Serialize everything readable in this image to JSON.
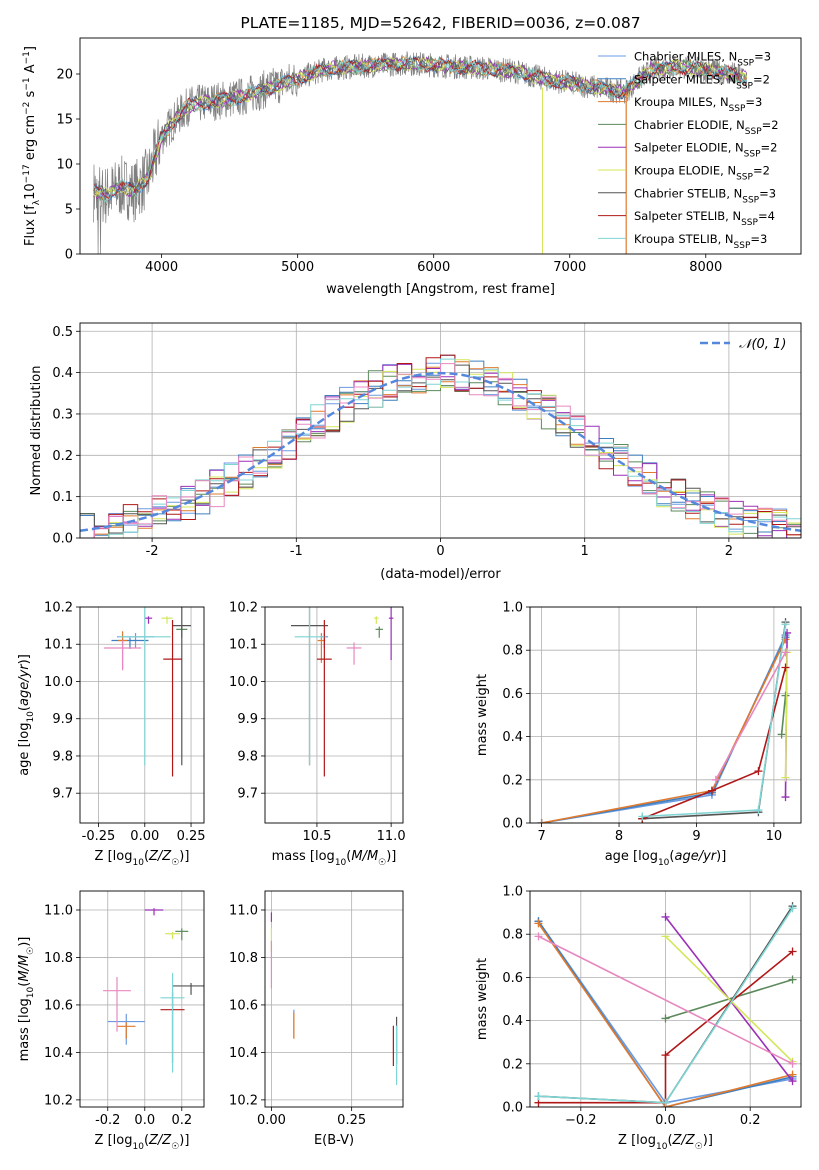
{
  "colors": {
    "Chabrier MILES": "#6a9be0",
    "Salpeter MILES": "#3d7fc0",
    "Kroupa MILES": "#e07a2e",
    "Chabrier ELODIE": "#5c8a5c",
    "Salpeter ELODIE": "#9b30b8",
    "Kroupa ELODIE": "#d4e65a",
    "Chabrier STELIB": "#555555",
    "Salpeter STELIB": "#b01818",
    "Kroupa STELIB": "#7fd4d4",
    "pink": "#e888c0",
    "normal": "#5588dd"
  },
  "chart_data": [
    {
      "id": "spectrum",
      "type": "line",
      "title": "PLATE=1185, MJD=52642, FIBERID=0036, z=0.087",
      "xlabel": "wavelength [Angstrom, rest frame]",
      "ylabel": "Flux [f_λ 10^-17 erg cm^-2 s^-1 A^-1]",
      "xlim": [
        3400,
        8700
      ],
      "ylim": [
        0,
        24
      ],
      "xticks": [
        4000,
        5000,
        6000,
        7000,
        8000
      ],
      "yticks": [
        0,
        5,
        10,
        15,
        20
      ],
      "continuum": {
        "x": [
          3500,
          3600,
          3700,
          3800,
          3900,
          4000,
          4100,
          4200,
          4400,
          4600,
          4800,
          5000,
          5200,
          5400,
          5600,
          5800,
          6000,
          6200,
          6400,
          6600,
          6800,
          7000,
          7200,
          7400,
          7600,
          7800,
          8000,
          8200,
          8300
        ],
        "y": [
          7.0,
          6.5,
          7.5,
          7.0,
          8.5,
          13.0,
          15.0,
          16.5,
          17.0,
          17.5,
          18.5,
          19.5,
          20.5,
          20.8,
          21.0,
          21.2,
          21.0,
          20.8,
          20.6,
          20.3,
          19.5,
          19.0,
          18.5,
          18.0,
          20.5,
          20.8,
          20.5,
          20.0,
          19.5
        ]
      },
      "legend": [
        {
          "label": "Chabrier MILES, N",
          "sub": "SSP",
          "eq": "=3",
          "color": "Chabrier MILES"
        },
        {
          "label": "Salpeter MILES, N",
          "sub": "SSP",
          "eq": "=2",
          "color": "Salpeter MILES"
        },
        {
          "label": "Kroupa MILES, N",
          "sub": "SSP",
          "eq": "=3",
          "color": "Kroupa MILES"
        },
        {
          "label": "Chabrier ELODIE, N",
          "sub": "SSP",
          "eq": "=2",
          "color": "Chabrier ELODIE"
        },
        {
          "label": "Salpeter ELODIE, N",
          "sub": "SSP",
          "eq": "=2",
          "color": "Salpeter ELODIE"
        },
        {
          "label": "Kroupa ELODIE, N",
          "sub": "SSP",
          "eq": "=2",
          "color": "Kroupa ELODIE"
        },
        {
          "label": "Chabrier STELIB, N",
          "sub": "SSP",
          "eq": "=3",
          "color": "Chabrier STELIB"
        },
        {
          "label": "Salpeter STELIB, N",
          "sub": "SSP",
          "eq": "=4",
          "color": "Salpeter STELIB"
        },
        {
          "label": "Kroupa STELIB, N",
          "sub": "SSP",
          "eq": "=3",
          "color": "Kroupa STELIB"
        }
      ]
    },
    {
      "id": "residuals",
      "type": "line",
      "xlabel": "(data-model)/error",
      "ylabel": "Normed distribution",
      "xlim": [
        -2.5,
        2.5
      ],
      "ylim": [
        0,
        0.52
      ],
      "xticks": [
        -2,
        -1,
        0,
        1,
        2
      ],
      "yticks": [
        0.0,
        0.1,
        0.2,
        0.3,
        0.4,
        0.5
      ],
      "legend": "𝒩(0, 1)",
      "normal_curve": {
        "mean": 0,
        "sigma": 1
      }
    },
    {
      "id": "age-vs-Z",
      "type": "scatter",
      "xlabel": "Z [log10(Z/Z☉)]",
      "ylabel": "age [log10(age/yr)]",
      "xlim": [
        -0.35,
        0.32
      ],
      "ylim": [
        9.62,
        10.2
      ],
      "xticks": [
        -0.25,
        0.0,
        0.25
      ],
      "yticks": [
        9.7,
        9.8,
        9.9,
        10.0,
        10.1,
        10.2
      ],
      "points": [
        {
          "c": "Chabrier MILES",
          "x": -0.05,
          "y": 10.12,
          "xe": 0.2,
          "ye": 0.04
        },
        {
          "c": "Salpeter MILES",
          "x": -0.08,
          "y": 10.11,
          "xe": 0.2,
          "ye": 0.03
        },
        {
          "c": "Kroupa MILES",
          "x": -0.12,
          "y": 10.11,
          "xe": 0.05,
          "ye": 0.1
        },
        {
          "c": "Chabrier ELODIE",
          "x": 0.2,
          "y": 10.14,
          "xe": 0.06,
          "ye": 0.03
        },
        {
          "c": "Salpeter ELODIE",
          "x": 0.02,
          "y": 10.17,
          "xe": 0.04,
          "ye": 0.02
        },
        {
          "c": "Kroupa ELODIE",
          "x": 0.12,
          "y": 10.17,
          "xe": 0.06,
          "ye": 0.02
        },
        {
          "c": "Chabrier STELIB",
          "x": 0.2,
          "y": 10.15,
          "xe": 0.1,
          "ye": 0.5
        },
        {
          "c": "Salpeter STELIB",
          "x": 0.15,
          "y": 10.06,
          "xe": 0.1,
          "ye": 0.42
        },
        {
          "c": "Kroupa STELIB",
          "x": 0.0,
          "y": 10.12,
          "xe": 0.28,
          "ye": 0.46
        },
        {
          "c": "pink",
          "x": -0.12,
          "y": 10.09,
          "xe": 0.2,
          "ye": 0.08
        }
      ]
    },
    {
      "id": "age-vs-mass",
      "type": "scatter",
      "xlabel": "mass [log10(M/M☉)]",
      "ylabel": "",
      "xlim": [
        10.15,
        11.08
      ],
      "ylim": [
        9.62,
        10.2
      ],
      "xticks": [
        10.5,
        11.0
      ],
      "yticks": [
        9.7,
        9.8,
        9.9,
        10.0,
        10.1,
        10.2
      ],
      "points": [
        {
          "c": "Chabrier MILES",
          "x": 10.55,
          "y": 10.12,
          "xe": 0.05,
          "ye": 0.04
        },
        {
          "c": "Kroupa MILES",
          "x": 10.53,
          "y": 10.11,
          "xe": 0.05,
          "ye": 0.08
        },
        {
          "c": "Chabrier ELODIE",
          "x": 10.92,
          "y": 10.14,
          "xe": 0.05,
          "ye": 0.03
        },
        {
          "c": "Salpeter ELODIE",
          "x": 11.0,
          "y": 10.17,
          "xe": 0.03,
          "ye": 0.15
        },
        {
          "c": "Kroupa ELODIE",
          "x": 10.9,
          "y": 10.17,
          "xe": 0.03,
          "ye": 0.02
        },
        {
          "c": "Chabrier STELIB",
          "x": 10.45,
          "y": 10.15,
          "xe": 0.25,
          "ye": 0.5
        },
        {
          "c": "Salpeter STELIB",
          "x": 10.55,
          "y": 10.06,
          "xe": 0.1,
          "ye": 0.42
        },
        {
          "c": "Kroupa STELIB",
          "x": 10.45,
          "y": 10.12,
          "xe": 0.2,
          "ye": 0.46
        },
        {
          "c": "pink",
          "x": 10.75,
          "y": 10.09,
          "xe": 0.1,
          "ye": 0.06
        }
      ]
    },
    {
      "id": "weight-vs-age",
      "type": "line",
      "xlabel": "age [log10(age/yr)]",
      "ylabel": "mass weight",
      "xlim": [
        6.85,
        10.35
      ],
      "ylim": [
        0,
        1
      ],
      "xticks": [
        7,
        8,
        9,
        10
      ],
      "yticks": [
        0.0,
        0.2,
        0.4,
        0.6,
        0.8,
        1.0
      ],
      "series": [
        {
          "c": "Chabrier MILES",
          "x": [
            7.0,
            9.2,
            10.15
          ],
          "y": [
            0.0,
            0.13,
            0.87
          ]
        },
        {
          "c": "Salpeter MILES",
          "x": [
            7.0,
            9.2,
            10.15
          ],
          "y": [
            0.0,
            0.14,
            0.86
          ]
        },
        {
          "c": "Kroupa MILES",
          "x": [
            7.0,
            9.2,
            10.15
          ],
          "y": [
            0.0,
            0.15,
            0.85
          ]
        },
        {
          "c": "Chabrier ELODIE",
          "x": [
            10.1,
            10.15
          ],
          "y": [
            0.41,
            0.59
          ]
        },
        {
          "c": "Salpeter ELODIE",
          "x": [
            10.15,
            10.17
          ],
          "y": [
            0.12,
            0.88
          ]
        },
        {
          "c": "Kroupa ELODIE",
          "x": [
            10.15,
            10.17
          ],
          "y": [
            0.21,
            0.79
          ]
        },
        {
          "c": "Chabrier STELIB",
          "x": [
            8.3,
            9.8,
            10.15
          ],
          "y": [
            0.02,
            0.05,
            0.93
          ]
        },
        {
          "c": "Salpeter STELIB",
          "x": [
            8.3,
            9.2,
            9.8,
            10.15
          ],
          "y": [
            0.02,
            0.15,
            0.24,
            0.72
          ]
        },
        {
          "c": "Kroupa STELIB",
          "x": [
            8.3,
            9.8,
            10.15
          ],
          "y": [
            0.03,
            0.06,
            0.92
          ]
        },
        {
          "c": "pink",
          "x": [
            9.25,
            10.15
          ],
          "y": [
            0.2,
            0.79
          ]
        }
      ]
    },
    {
      "id": "mass-vs-Z",
      "type": "scatter",
      "xlabel": "Z [log10(Z/Z☉)]",
      "ylabel": "mass [log10(M/M☉)]",
      "xlim": [
        -0.35,
        0.32
      ],
      "ylim": [
        10.17,
        11.08
      ],
      "xticks": [
        -0.2,
        0.0,
        0.2
      ],
      "yticks": [
        10.2,
        10.4,
        10.6,
        10.8,
        11.0
      ],
      "points": [
        {
          "c": "Chabrier MILES",
          "x": -0.1,
          "y": 10.53,
          "xe": 0.2,
          "ye": 0.13
        },
        {
          "c": "Kroupa MILES",
          "x": -0.1,
          "y": 10.51,
          "xe": 0.1,
          "ye": 0.07
        },
        {
          "c": "Chabrier ELODIE",
          "x": 0.2,
          "y": 10.91,
          "xe": 0.07,
          "ye": 0.05
        },
        {
          "c": "Salpeter ELODIE",
          "x": 0.05,
          "y": 11.0,
          "xe": 0.1,
          "ye": 0.03
        },
        {
          "c": "Kroupa ELODIE",
          "x": 0.15,
          "y": 10.9,
          "xe": 0.08,
          "ye": 0.03
        },
        {
          "c": "Chabrier STELIB",
          "x": 0.25,
          "y": 10.68,
          "xe": 0.2,
          "ye": 0.05
        },
        {
          "c": "Salpeter STELIB",
          "x": 0.15,
          "y": 10.58,
          "xe": 0.13,
          "ye": 0.3
        },
        {
          "c": "Kroupa STELIB",
          "x": 0.15,
          "y": 10.63,
          "xe": 0.13,
          "ye": 0.42
        },
        {
          "c": "pink",
          "x": -0.15,
          "y": 10.66,
          "xe": 0.15,
          "ye": 0.23
        }
      ]
    },
    {
      "id": "mass-vs-EBV",
      "type": "scatter",
      "xlabel": "E(B-V)",
      "ylabel": "",
      "xlim": [
        -0.02,
        0.41
      ],
      "ylim": [
        10.17,
        11.08
      ],
      "xticks": [
        0.0,
        0.25
      ],
      "yticks": [
        10.2,
        10.4,
        10.6,
        10.8,
        11.0
      ],
      "points": [
        {
          "c": "Kroupa ELODIE",
          "x": 0.0,
          "y": 10.9,
          "xe": 0.001,
          "ye": 0.1
        },
        {
          "c": "Salpeter ELODIE",
          "x": 0.0,
          "y": 10.98,
          "xe": 0.001,
          "ye": 0.04
        },
        {
          "c": "pink",
          "x": 0.0,
          "y": 10.82,
          "xe": 0.001,
          "ye": 0.2
        },
        {
          "c": "Chabrier MILES",
          "x": 0.07,
          "y": 10.55,
          "xe": 0.001,
          "ye": 0.12
        },
        {
          "c": "Kroupa MILES",
          "x": 0.07,
          "y": 10.54,
          "xe": 0.001,
          "ye": 0.11
        },
        {
          "c": "Salpeter STELIB",
          "x": 0.38,
          "y": 10.47,
          "xe": 0.001,
          "ye": 0.17
        },
        {
          "c": "Chabrier STELIB",
          "x": 0.39,
          "y": 10.5,
          "xe": 0.001,
          "ye": 0.2
        },
        {
          "c": "Kroupa STELIB",
          "x": 0.39,
          "y": 10.45,
          "xe": 0.001,
          "ye": 0.25
        }
      ]
    },
    {
      "id": "weight-vs-Z",
      "type": "line",
      "xlabel": "Z [log10(Z/Z☉)]",
      "ylabel": "mass weight",
      "xlim": [
        -0.32,
        0.32
      ],
      "ylim": [
        0,
        1
      ],
      "xticks": [
        -0.2,
        0.0,
        0.2
      ],
      "yticks": [
        0.0,
        0.2,
        0.4,
        0.6,
        0.8,
        1.0
      ],
      "series": [
        {
          "c": "Chabrier MILES",
          "x": [
            -0.3,
            0.0,
            0.3
          ],
          "y": [
            0.86,
            0.02,
            0.13
          ]
        },
        {
          "c": "Salpeter MILES",
          "x": [
            -0.3,
            0.0,
            0.3
          ],
          "y": [
            0.86,
            0.0,
            0.14
          ]
        },
        {
          "c": "Kroupa MILES",
          "x": [
            -0.3,
            0.0,
            0.3
          ],
          "y": [
            0.85,
            0.0,
            0.15
          ]
        },
        {
          "c": "Chabrier ELODIE",
          "x": [
            0.0,
            0.3
          ],
          "y": [
            0.41,
            0.59
          ]
        },
        {
          "c": "Salpeter ELODIE",
          "x": [
            0.0,
            0.3
          ],
          "y": [
            0.88,
            0.12
          ]
        },
        {
          "c": "Kroupa ELODIE",
          "x": [
            0.0,
            0.3
          ],
          "y": [
            0.79,
            0.21
          ]
        },
        {
          "c": "Chabrier STELIB",
          "x": [
            -0.3,
            0.0,
            0.3
          ],
          "y": [
            0.05,
            0.02,
            0.93
          ]
        },
        {
          "c": "Salpeter STELIB",
          "x": [
            -0.3,
            0.0,
            0.0,
            0.3
          ],
          "y": [
            0.02,
            0.02,
            0.24,
            0.72
          ]
        },
        {
          "c": "Kroupa STELIB",
          "x": [
            -0.3,
            0.0,
            0.3
          ],
          "y": [
            0.05,
            0.02,
            0.92
          ]
        },
        {
          "c": "pink",
          "x": [
            -0.3,
            0.3
          ],
          "y": [
            0.79,
            0.2
          ]
        }
      ]
    }
  ]
}
